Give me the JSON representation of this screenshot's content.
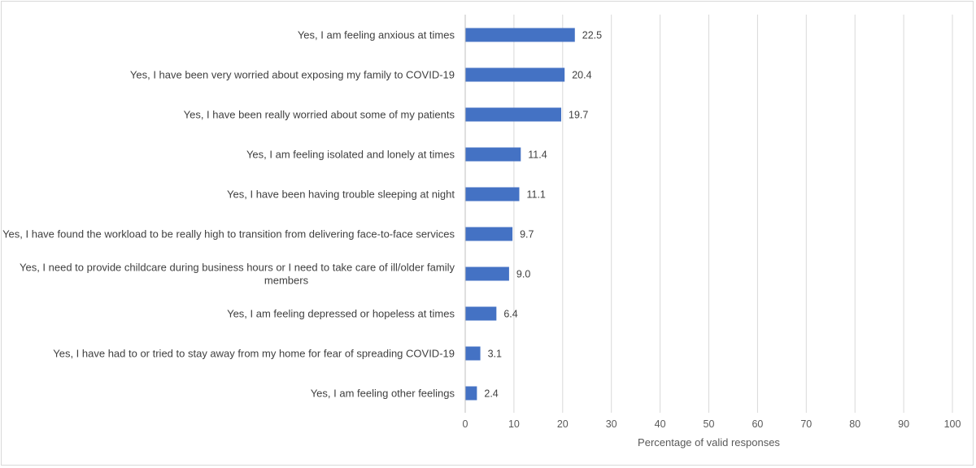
{
  "chart_data": {
    "type": "bar",
    "orientation": "horizontal",
    "categories": [
      [
        "Yes, I am feeling anxious at times"
      ],
      [
        "Yes, I have been very worried about exposing my family to COVID-19"
      ],
      [
        "Yes, I have been really worried about some of my patients"
      ],
      [
        "Yes, I am feeling isolated and lonely at times"
      ],
      [
        "Yes, I have been having trouble sleeping at night"
      ],
      [
        "Yes, I have found the workload to be really high to transition from delivering face-to-face services"
      ],
      [
        "Yes, I need to provide childcare during business hours or I need to take care of ill/older family",
        "members"
      ],
      [
        "Yes, I am feeling depressed or hopeless at times"
      ],
      [
        "Yes, I have had to or tried to stay away from my home for fear of spreading COVID-19"
      ],
      [
        "Yes, I am feeling other feelings"
      ]
    ],
    "values": [
      22.5,
      20.4,
      19.7,
      11.4,
      11.1,
      9.7,
      9.0,
      6.4,
      3.1,
      2.4
    ],
    "value_labels": [
      "22.5",
      "20.4",
      "19.7",
      "11.4",
      "11.1",
      "9.7",
      "9.0",
      "6.4",
      "3.1",
      "2.4"
    ],
    "xlim": [
      0,
      100
    ],
    "xticks": [
      "0",
      "10",
      "20",
      "30",
      "40",
      "50",
      "60",
      "70",
      "80",
      "90",
      "100"
    ],
    "xlabel": "Percentage of valid responses",
    "title": "",
    "grid": true,
    "legend": "none",
    "colors": {
      "bar": "#4472c4",
      "grid": "#d9d9d9",
      "axis": "#bfbfbf"
    }
  }
}
